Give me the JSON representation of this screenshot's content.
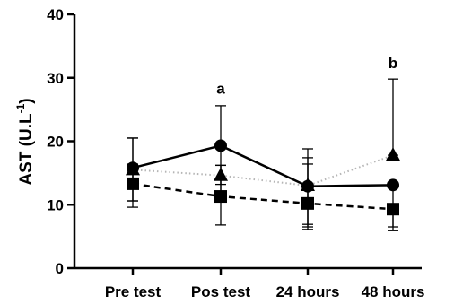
{
  "chart_data": {
    "type": "line",
    "categories": [
      "Pre test",
      "Pos test",
      "24 hours",
      "48 hours"
    ],
    "ylabel": "AST (U.L",
    "ylabel_superscript": "-1",
    "ylabel_suffix": ")",
    "ylim": [
      0,
      40
    ],
    "yticks": [
      0,
      10,
      20,
      30,
      40
    ],
    "grid": false,
    "legend": "none",
    "series": [
      {
        "marker": "circle",
        "line": "solid",
        "values": [
          15.8,
          19.3,
          12.9,
          13.1
        ],
        "err_low": [
          10.6,
          13.2,
          6.5,
          6.5
        ],
        "err_high": [
          20.5,
          25.6,
          18.8,
          13.1
        ]
      },
      {
        "marker": "triangle",
        "line": "dotted",
        "values": [
          15.5,
          14.6,
          13.0,
          17.8
        ],
        "err_low": [
          10.6,
          11.5,
          6.9,
          17.8
        ],
        "err_high": [
          20.5,
          16.2,
          17.4,
          29.8
        ]
      },
      {
        "marker": "square",
        "line": "dashed",
        "values": [
          13.3,
          11.3,
          10.2,
          9.3
        ],
        "err_low": [
          9.6,
          6.8,
          6.1,
          5.9
        ],
        "err_high": [
          16.4,
          16.2,
          16.4,
          9.3
        ]
      }
    ],
    "annotations": [
      {
        "text": "a",
        "category": "Pos test",
        "y": 27.5
      },
      {
        "text": "b",
        "category": "48 hours",
        "y": 31.5
      }
    ]
  }
}
